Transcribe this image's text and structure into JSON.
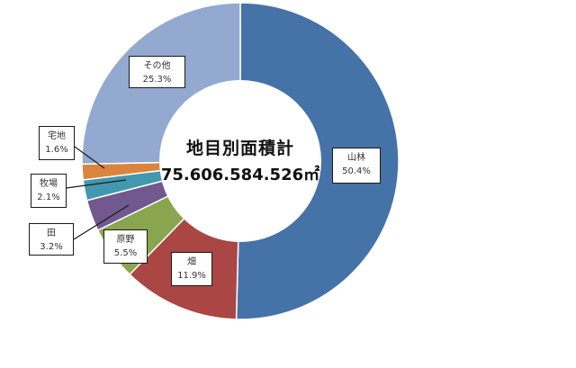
{
  "chart_data": {
    "type": "pie",
    "subtype": "donut",
    "title": "地目別面積計",
    "total": "75.606.584.526㎡",
    "categories": [
      "山林",
      "畑",
      "原野",
      "田",
      "牧場",
      "宅地",
      "その他"
    ],
    "values": [
      50.4,
      11.9,
      5.5,
      3.2,
      2.1,
      1.6,
      25.3
    ],
    "labels": [
      "50.4%",
      "11.9%",
      "5.5%",
      "3.2%",
      "2.1%",
      "1.6%",
      "25.3%"
    ],
    "colors": [
      "#4572a7",
      "#aa4643",
      "#89a54e",
      "#71588f",
      "#4198af",
      "#db843d",
      "#93a9cf"
    ],
    "legend": "none (data labels with callouts)"
  },
  "center": {
    "title": "地目別面積計",
    "value": "75.606.584.526㎡"
  },
  "labels": {
    "sanrin": {
      "name": "山林",
      "pct": "50.4%"
    },
    "hata": {
      "name": "畑",
      "pct": "11.9%"
    },
    "genya": {
      "name": "原野",
      "pct": "5.5%"
    },
    "ta": {
      "name": "田",
      "pct": "3.2%"
    },
    "bokujo": {
      "name": "牧場",
      "pct": "2.1%"
    },
    "takuchi": {
      "name": "宅地",
      "pct": "1.6%"
    },
    "sonota": {
      "name": "その他",
      "pct": "25.3%"
    }
  }
}
